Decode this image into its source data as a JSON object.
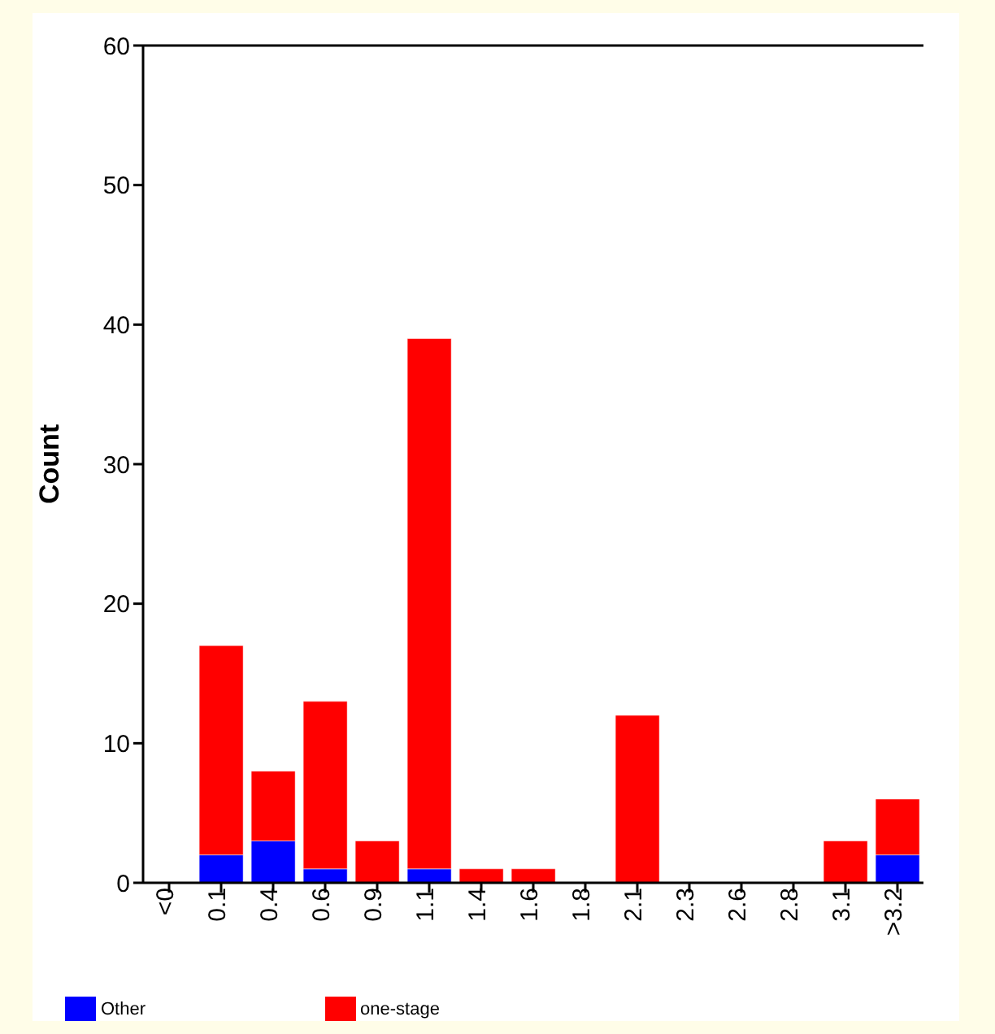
{
  "chart_data": {
    "type": "bar",
    "ylabel": "Count",
    "stacked": true,
    "categories": [
      "<0",
      "0.1",
      "0.4",
      "0.6",
      "0.9",
      "1.1",
      "1.4",
      "1.6",
      "1.8",
      "2.1",
      "2.3",
      "2.6",
      "2.8",
      "3.1",
      ">3.2"
    ],
    "series": [
      {
        "name": "Other",
        "color": "#0000ff",
        "values": [
          0,
          2,
          3,
          1,
          0,
          1,
          0,
          0,
          0,
          0,
          0,
          0,
          0,
          0,
          2
        ]
      },
      {
        "name": "one-stage",
        "color": "#ff0000",
        "values": [
          0,
          15,
          5,
          12,
          3,
          38,
          1,
          1,
          0,
          12,
          0,
          0,
          0,
          3,
          4
        ]
      }
    ],
    "ylim": [
      0,
      60
    ],
    "yticks": [
      0,
      10,
      20,
      30,
      40,
      50,
      60
    ],
    "grid": false,
    "legend": "bottom"
  }
}
